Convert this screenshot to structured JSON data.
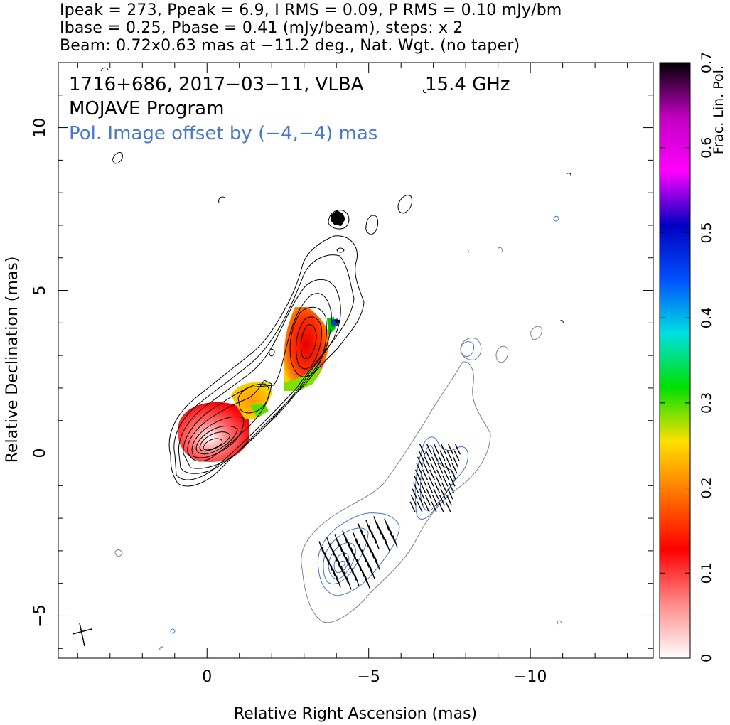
{
  "header": {
    "line1": "Ipeak = 273, Ppeak = 6.9, I RMS = 0.09, P RMS = 0.10 mJy/bm",
    "line2": "Ibase = 0.25, Pbase = 0.41 (mJy/beam), steps: x 2",
    "line3": "Beam: 0.72x0.63 mas at −11.2 deg., Nat. Wgt. (no taper)"
  },
  "chart_data": {
    "type": "contour",
    "annotations": {
      "source": "1716+686, 2017−03−11, VLBA",
      "frequency": "15.4 GHz",
      "program": "MOJAVE Program",
      "pol_offset": "Pol. Image offset by (−4,−4) mas"
    },
    "xlabel": "Relative Right Ascension (mas)",
    "ylabel": "Relative Declination (mas)",
    "xlim": [
      4.6,
      -13.8
    ],
    "ylim": [
      -6.3,
      12.0
    ],
    "xticks": [
      {
        "value": 0,
        "label": "0"
      },
      {
        "value": -5,
        "label": "−5"
      },
      {
        "value": -10,
        "label": "−10"
      }
    ],
    "yticks": [
      {
        "value": -5,
        "label": "−5"
      },
      {
        "value": 0,
        "label": "0"
      },
      {
        "value": 5,
        "label": "5"
      },
      {
        "value": 10,
        "label": "10"
      }
    ],
    "colorbar": {
      "label": "Frac. Lin. Pol.",
      "range": [
        0,
        0.7
      ],
      "ticks": [
        {
          "value": 0,
          "label": "0"
        },
        {
          "value": 0.1,
          "label": "0.1"
        },
        {
          "value": 0.2,
          "label": "0.2"
        },
        {
          "value": 0.3,
          "label": "0.3"
        },
        {
          "value": 0.4,
          "label": "0.4"
        },
        {
          "value": 0.5,
          "label": "0.5"
        },
        {
          "value": 0.6,
          "label": "0.6"
        },
        {
          "value": 0.7,
          "label": "0.7"
        }
      ],
      "stops": [
        "#ffffff",
        "#ff8a8a",
        "#ff0000",
        "#ff7000",
        "#ffe000",
        "#00e000",
        "#00e0e0",
        "#0050ff",
        "#0000c0",
        "#ff00ff",
        "#c000c0",
        "#000000"
      ]
    },
    "stokes_i_core": {
      "x": 0.2,
      "y": 0.2,
      "levels": 9
    },
    "stokes_i_jet": [
      {
        "x": -3.1,
        "y": 3.6,
        "levels": 5
      },
      {
        "x": -1.6,
        "y": 1.5,
        "levels": 2
      }
    ],
    "frac_pol_regions": [
      {
        "x": 0.1,
        "y": 0.3,
        "value": 0.08
      },
      {
        "x": -3.1,
        "y": 3.5,
        "value": 0.13
      },
      {
        "x": -1.4,
        "y": 1.6,
        "value": 0.24
      },
      {
        "x": -4.0,
        "y": 4.0,
        "value": 0.4
      },
      {
        "x": -4.1,
        "y": 7.3,
        "value": 0.7
      }
    ],
    "beam": {
      "major_mas": 0.72,
      "minor_mas": 0.63,
      "pa_deg": -11.2
    },
    "colors": {
      "total_intensity": "#000000",
      "offset_total_intensity": "#808080",
      "pol_intensity": "#4472c4",
      "evpa": "#000000",
      "annotation_blue": "#4a78d0"
    }
  }
}
